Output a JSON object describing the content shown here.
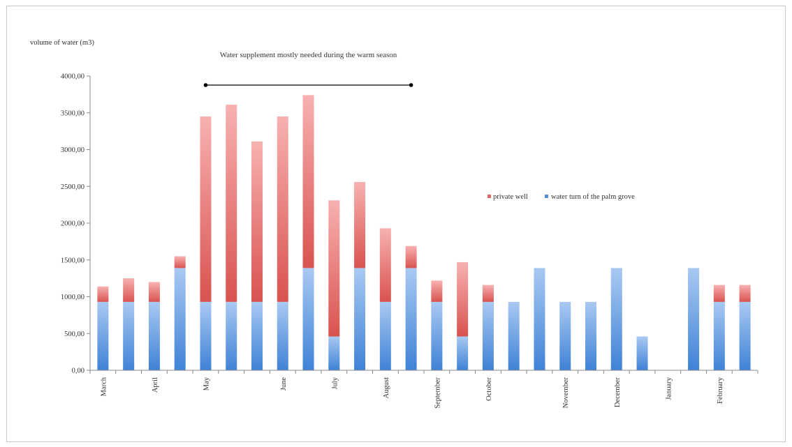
{
  "chart_data": {
    "type": "bar",
    "stacked": true,
    "ylabel": "volume of water (m3)",
    "ylim": [
      0,
      4000
    ],
    "yticks": [
      "0,00",
      "500,00",
      "1000,00",
      "1500,00",
      "2000,00",
      "2500,00",
      "3000,00",
      "3500,00",
      "4000,00"
    ],
    "grid": false,
    "legend_position": "right",
    "annotation": {
      "text": "Water supplement mostly needed during the warm season",
      "from_index": 4,
      "to_index": 12
    },
    "month_labels": [
      {
        "label": "March",
        "index": 0
      },
      {
        "label": "April",
        "index": 2
      },
      {
        "label": "May",
        "index": 4
      },
      {
        "label": "June",
        "index": 7
      },
      {
        "label": "July",
        "index": 9
      },
      {
        "label": "August",
        "index": 11
      },
      {
        "label": "September",
        "index": 13
      },
      {
        "label": "October",
        "index": 15
      },
      {
        "label": "November",
        "index": 18
      },
      {
        "label": "December",
        "index": 20
      },
      {
        "label": "January",
        "index": 22
      },
      {
        "label": "February",
        "index": 24
      }
    ],
    "series": [
      {
        "name": "water turn of the palm grove",
        "color": "#4f8fda",
        "values": [
          930,
          930,
          930,
          1390,
          930,
          930,
          930,
          930,
          1390,
          460,
          1390,
          930,
          1390,
          930,
          460,
          930,
          930,
          1390,
          930,
          930,
          1390,
          460,
          0,
          1390,
          930,
          930
        ]
      },
      {
        "name": "private well",
        "color": "#e06666",
        "values": [
          210,
          320,
          270,
          160,
          2520,
          2680,
          2180,
          2520,
          2350,
          1850,
          1170,
          1000,
          300,
          290,
          1010,
          230,
          0,
          0,
          0,
          0,
          0,
          0,
          0,
          0,
          230,
          230
        ]
      }
    ]
  }
}
